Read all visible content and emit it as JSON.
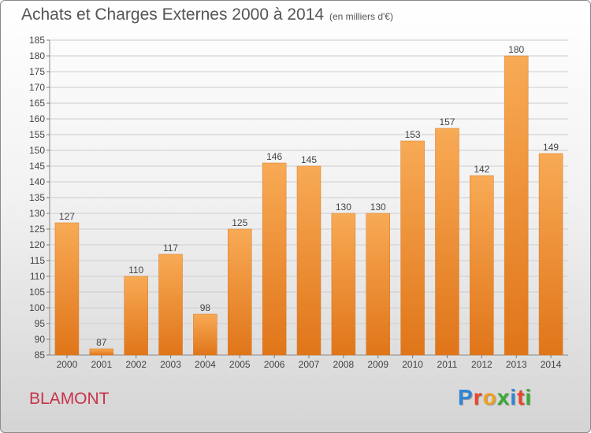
{
  "header": {
    "title": "Achats et Charges Externes 2000 à 2014",
    "subtitle": "(en milliers d'€)"
  },
  "footer": {
    "city": "BLAMONT",
    "logo_text": "Proxiti",
    "logo_colors": [
      "#2e86d6",
      "#e8442a",
      "#f0a020",
      "#3aaa35",
      "#2e86d6",
      "#e8442a",
      "#3aaa35"
    ]
  },
  "colors": {
    "bar_light": "#f8aa55",
    "bar_dark": "#e07519",
    "grid": "#cccccc"
  },
  "chart_data": {
    "type": "bar",
    "categories": [
      "2000",
      "2001",
      "2002",
      "2003",
      "2004",
      "2005",
      "2006",
      "2007",
      "2008",
      "2009",
      "2010",
      "2011",
      "2012",
      "2013",
      "2014"
    ],
    "values": [
      127,
      87,
      110,
      117,
      98,
      125,
      146,
      145,
      130,
      130,
      153,
      157,
      142,
      180,
      149
    ],
    "ylim": [
      85,
      185
    ],
    "yticks": [
      85,
      90,
      95,
      100,
      105,
      110,
      115,
      120,
      125,
      130,
      135,
      140,
      145,
      150,
      155,
      160,
      165,
      170,
      175,
      180,
      185
    ],
    "grid": true,
    "data_labels": true
  }
}
